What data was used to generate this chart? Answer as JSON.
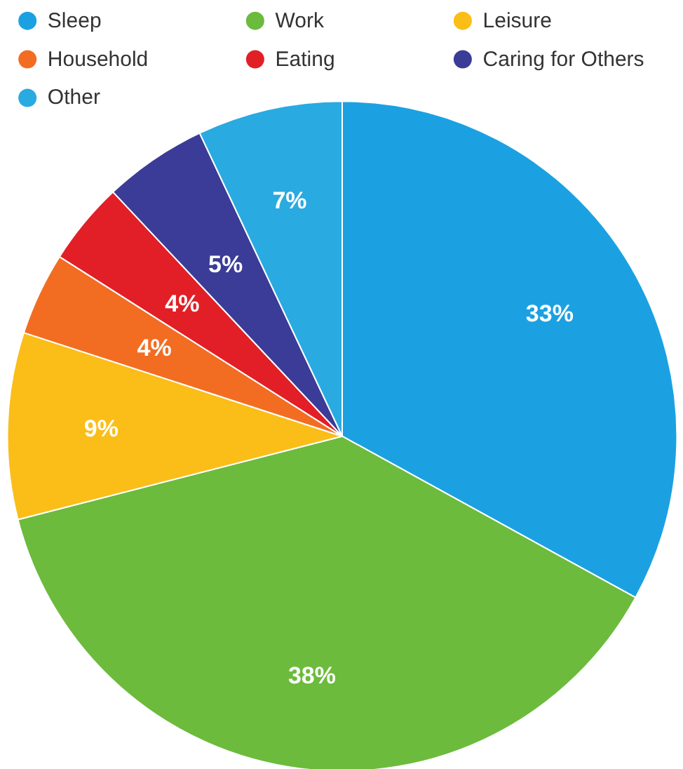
{
  "chart_data": {
    "type": "pie",
    "categories": [
      "Sleep",
      "Work",
      "Leisure",
      "Household",
      "Eating",
      "Caring for Others",
      "Other"
    ],
    "values": [
      33,
      38,
      9,
      4,
      4,
      5,
      7
    ],
    "colors": [
      "#1ba1e2",
      "#6cbb3c",
      "#fbbd18",
      "#f26d22",
      "#e21f26",
      "#3b3c97",
      "#29aae1"
    ],
    "value_labels": [
      "33%",
      "38%",
      "9%",
      "4%",
      "4%",
      "5%",
      "7%"
    ],
    "legend": "top"
  }
}
